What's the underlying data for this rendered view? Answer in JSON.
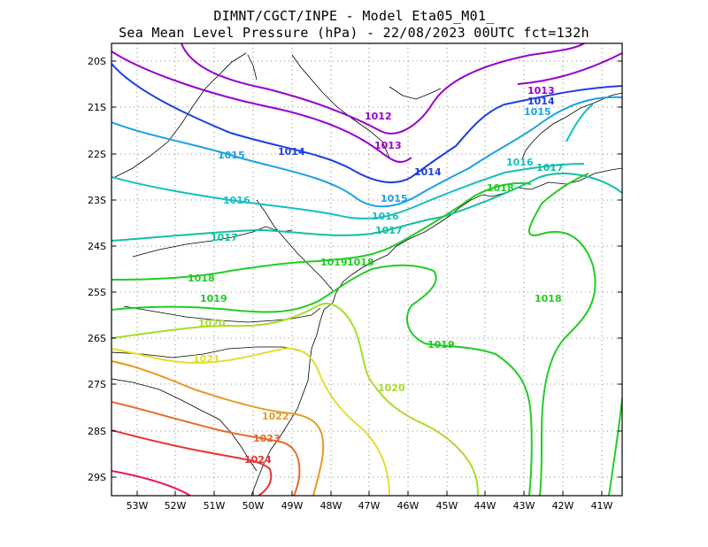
{
  "header": {
    "line1": "DIMNT/CGCT/INPE -  Model Eta05_M01_",
    "line2": "Sea Mean Level Pressure (hPa) - 22/08/2023 00UTC fct=132h"
  },
  "axes": {
    "lat_labels": [
      "20S",
      "21S",
      "22S",
      "23S",
      "24S",
      "25S",
      "26S",
      "27S",
      "28S",
      "29S"
    ],
    "lon_labels": [
      "53W",
      "52W",
      "51W",
      "50W",
      "49W",
      "48W",
      "47W",
      "46W",
      "45W",
      "44W",
      "43W",
      "42W",
      "41W"
    ]
  },
  "map_data": {
    "type": "contour",
    "variable": "Sea Mean Level Pressure (hPa)",
    "contour_labels": [
      {
        "text": "1012",
        "color": "#9900cc"
      },
      {
        "text": "1013",
        "color": "#9900cc"
      },
      {
        "text": "1013",
        "color": "#9900cc"
      },
      {
        "text": "1014",
        "color": "#1f3fe0"
      },
      {
        "text": "1014",
        "color": "#1f3fe0"
      },
      {
        "text": "1014",
        "color": "#1f3fe0"
      },
      {
        "text": "1015",
        "color": "#1aa0e6"
      },
      {
        "text": "1015",
        "color": "#1aa0e6"
      },
      {
        "text": "1015",
        "color": "#1aa0e6"
      },
      {
        "text": "1016",
        "color": "#15bfc0"
      },
      {
        "text": "1016",
        "color": "#15bfc0"
      },
      {
        "text": "1016",
        "color": "#15bfc0"
      },
      {
        "text": "1017",
        "color": "#10c0a0"
      },
      {
        "text": "1017",
        "color": "#10c0a0"
      },
      {
        "text": "1017",
        "color": "#10c0a0"
      },
      {
        "text": "1018",
        "color": "#22cc22"
      },
      {
        "text": "1018",
        "color": "#22cc22"
      },
      {
        "text": "1018",
        "color": "#22cc22"
      },
      {
        "text": "1018",
        "color": "#22cc22"
      },
      {
        "text": "1019",
        "color": "#22cc22"
      },
      {
        "text": "1019",
        "color": "#22cc22"
      },
      {
        "text": "1019",
        "color": "#22cc22"
      },
      {
        "text": "1020",
        "color": "#a8dc2a"
      },
      {
        "text": "1020",
        "color": "#a8dc2a"
      },
      {
        "text": "1021",
        "color": "#e6dc32"
      },
      {
        "text": "1022",
        "color": "#e69a28"
      },
      {
        "text": "1023",
        "color": "#e66a28"
      },
      {
        "text": "1024",
        "color": "#e63232"
      }
    ]
  }
}
